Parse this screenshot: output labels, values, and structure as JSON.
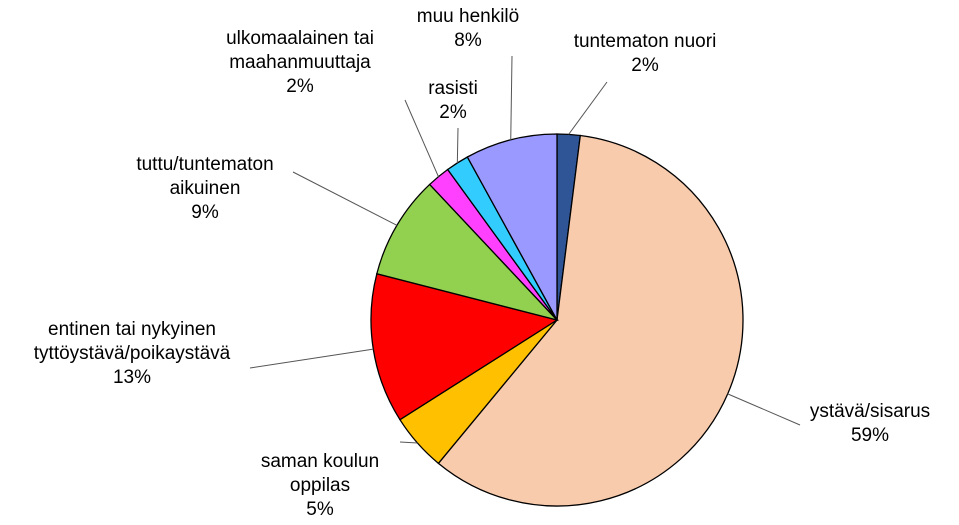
{
  "chart_data": {
    "type": "pie",
    "categories": [
      "tuntematon nuori",
      "ystävä/sisarus",
      "saman koulun oppilas",
      "entinen tai nykyinen tyttöystävä/poikaystävä",
      "tuttu/tuntematon aikuinen",
      "ulkomaalainen tai maahanmuuttaja",
      "rasisti",
      "muu henkilö"
    ],
    "values": [
      2,
      59,
      5,
      13,
      9,
      2,
      2,
      8
    ],
    "value_labels": [
      "2%",
      "59%",
      "5%",
      "13%",
      "9%",
      "2%",
      "2%",
      "8%"
    ],
    "colors": [
      "#2f5597",
      "#f8cbad",
      "#ffc000",
      "#ff0000",
      "#92d050",
      "#ff40ff",
      "#33ccff",
      "#9999ff"
    ]
  }
}
